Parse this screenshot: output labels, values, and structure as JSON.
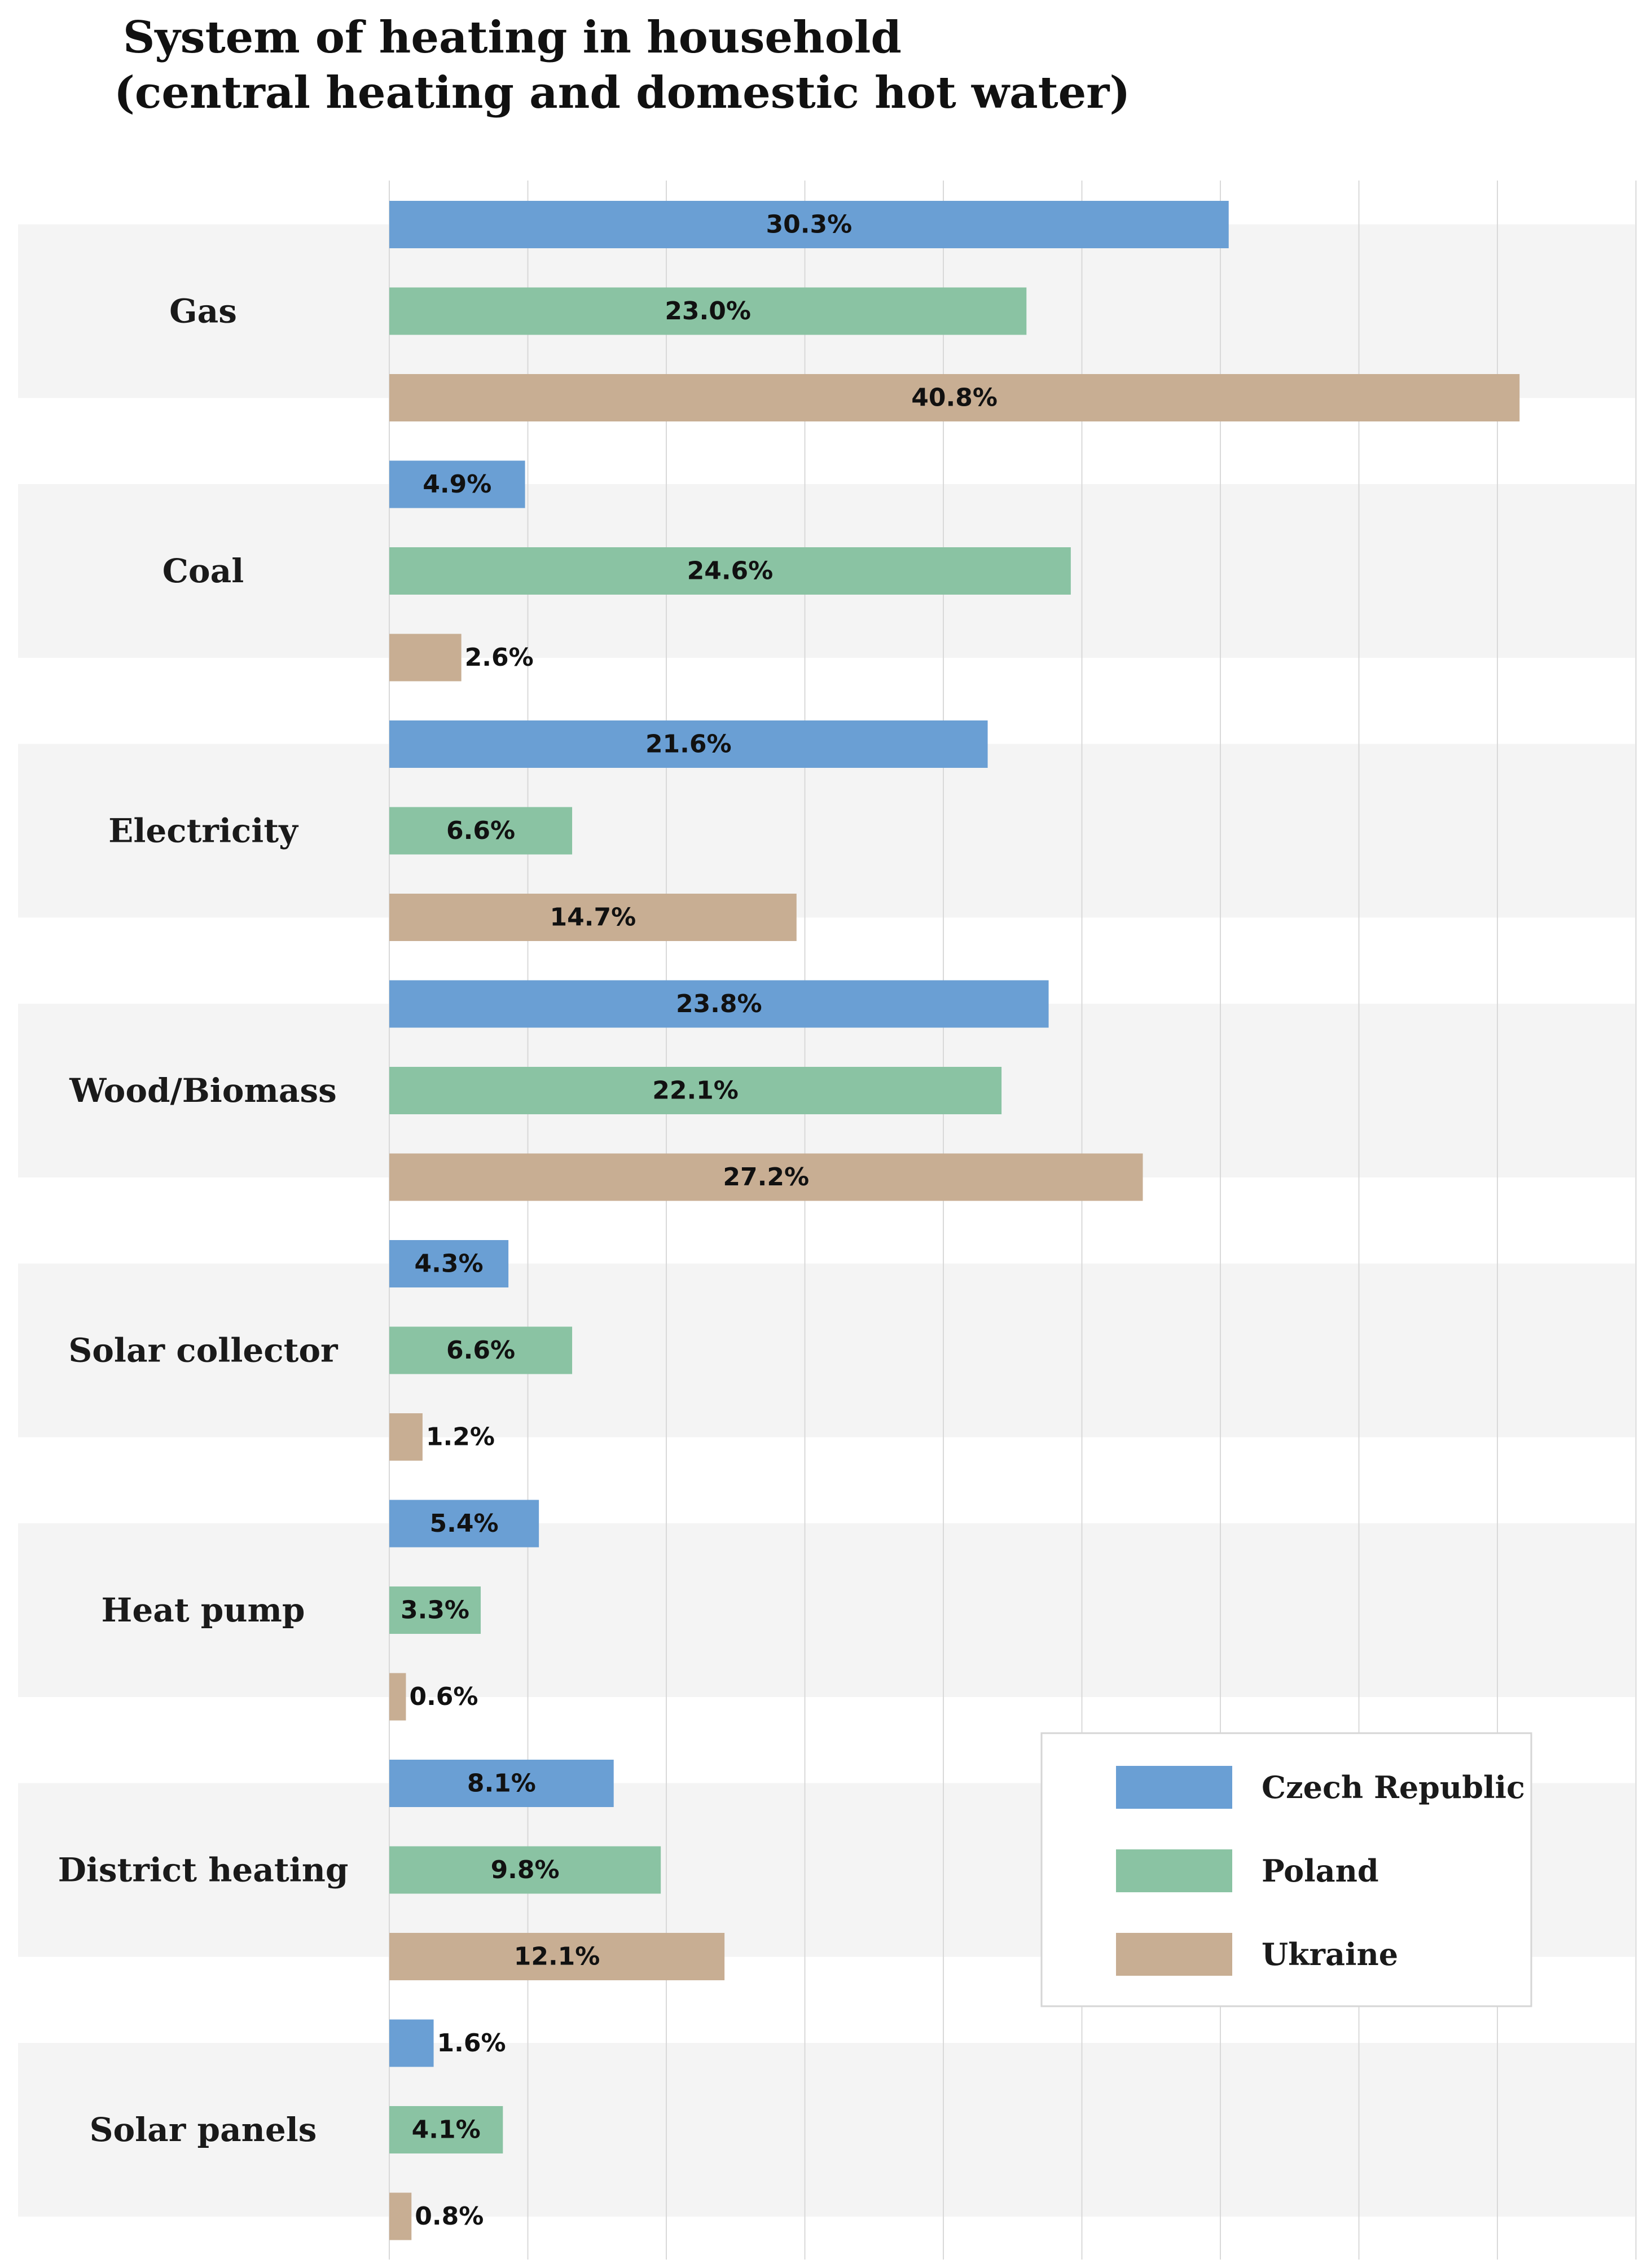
{
  "chart_data": {
    "type": "bar",
    "orientation": "horizontal",
    "title_lines": [
      "System of heating in household",
      "(central heating and domestic hot water)"
    ],
    "categories": [
      "Gas",
      "Coal",
      "Electricity",
      "Wood/Biomass",
      "Solar collector",
      "Heat pump",
      "District heating",
      "Solar panels"
    ],
    "series": [
      {
        "name": "Czech Republic",
        "color": "#6a9fd4",
        "values": [
          30.3,
          4.9,
          21.6,
          23.8,
          4.3,
          5.4,
          8.1,
          1.6
        ],
        "labels": [
          "30.3%",
          "4.9%",
          "21.6%",
          "23.8%",
          "4.3%",
          "5.4%",
          "8.1%",
          "1.6%"
        ]
      },
      {
        "name": "Poland",
        "color": "#8ac3a3",
        "values": [
          23.0,
          24.6,
          6.6,
          22.1,
          6.6,
          3.3,
          9.8,
          4.1
        ],
        "labels": [
          "23.0%",
          "24.6%",
          "6.6%",
          "22.1%",
          "6.6%",
          "3.3%",
          "9.8%",
          "4.1%"
        ]
      },
      {
        "name": "Ukraine",
        "color": "#c8ae93",
        "values": [
          40.8,
          2.6,
          14.7,
          27.2,
          1.2,
          0.6,
          12.1,
          0.8
        ],
        "labels": [
          "40.8%",
          "2.6%",
          "14.7%",
          "27.2%",
          "1.2%",
          "0.6%",
          "12.1%",
          "0.8%"
        ]
      }
    ],
    "xlim": [
      0,
      45
    ],
    "grid": true,
    "legend_position": "bottom-right"
  }
}
